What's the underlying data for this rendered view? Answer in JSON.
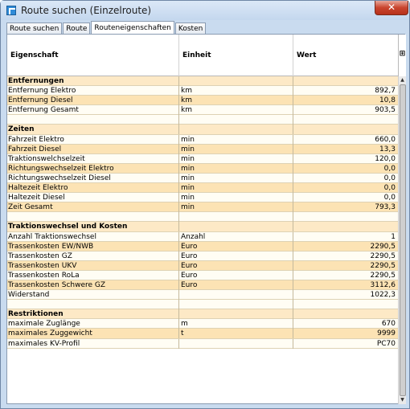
{
  "window": {
    "title": "Route suchen (Einzelroute)",
    "close_symbol": "✕"
  },
  "tabs": [
    {
      "label": "Route suchen",
      "active": false
    },
    {
      "label": "Route",
      "active": false
    },
    {
      "label": "Routeneigenschaften",
      "active": true
    },
    {
      "label": "Kosten",
      "active": false
    }
  ],
  "table": {
    "columns": [
      "Eigenschaft",
      "Einheit",
      "Wert"
    ],
    "column_chooser_symbol": "⊞",
    "rows": [
      {
        "type": "section",
        "name": "Entfernungen",
        "unit": "",
        "value": ""
      },
      {
        "type": "data",
        "name": "Entfernung Elektro",
        "unit": "km",
        "value": "892,7"
      },
      {
        "type": "data",
        "name": "Entfernung Diesel",
        "unit": "km",
        "value": "10,8"
      },
      {
        "type": "data",
        "name": "Entfernung Gesamt",
        "unit": "km",
        "value": "903,5"
      },
      {
        "type": "blank",
        "name": "",
        "unit": "",
        "value": ""
      },
      {
        "type": "section",
        "name": "Zeiten",
        "unit": "",
        "value": ""
      },
      {
        "type": "data",
        "name": "Fahrzeit Elektro",
        "unit": "min",
        "value": "660,0"
      },
      {
        "type": "data",
        "name": "Fahrzeit Diesel",
        "unit": "min",
        "value": "13,3"
      },
      {
        "type": "data",
        "name": "Traktionswelchselzeit",
        "unit": "min",
        "value": "120,0"
      },
      {
        "type": "data",
        "name": "Richtungswechselzeit Elektro",
        "unit": "min",
        "value": "0,0"
      },
      {
        "type": "data",
        "name": "Richtungswechselzeit Diesel",
        "unit": "min",
        "value": "0,0"
      },
      {
        "type": "data",
        "name": "Haltezeit Elektro",
        "unit": "min",
        "value": "0,0"
      },
      {
        "type": "data",
        "name": "Haltezeit Diesel",
        "unit": "min",
        "value": "0,0"
      },
      {
        "type": "data",
        "name": "Zeit Gesamt",
        "unit": "min",
        "value": "793,3"
      },
      {
        "type": "blank",
        "name": "",
        "unit": "",
        "value": ""
      },
      {
        "type": "section",
        "name": "Traktionswechsel und Kosten",
        "unit": "",
        "value": ""
      },
      {
        "type": "data",
        "name": "Anzahl Traktionswechsel",
        "unit": "Anzahl",
        "value": "1"
      },
      {
        "type": "data",
        "name": "Trassenkosten EW/NWB",
        "unit": "Euro",
        "value": "2290,5"
      },
      {
        "type": "data",
        "name": "Trassenkosten GZ",
        "unit": "Euro",
        "value": "2290,5"
      },
      {
        "type": "data",
        "name": "Trassenkosten UKV",
        "unit": "Euro",
        "value": "2290,5"
      },
      {
        "type": "data",
        "name": "Trassenkosten RoLa",
        "unit": "Euro",
        "value": "2290,5"
      },
      {
        "type": "data",
        "name": "Trassenkosten Schwere GZ",
        "unit": "Euro",
        "value": "3112,6"
      },
      {
        "type": "data",
        "name": "Widerstand",
        "unit": "",
        "value": "1022,3"
      },
      {
        "type": "blank",
        "name": "",
        "unit": "",
        "value": ""
      },
      {
        "type": "section",
        "name": "Restriktionen",
        "unit": "",
        "value": ""
      },
      {
        "type": "data",
        "name": "maximale Zuglänge",
        "unit": "m",
        "value": "670"
      },
      {
        "type": "data",
        "name": "maximales Zuggewicht",
        "unit": "t",
        "value": "9999"
      },
      {
        "type": "data",
        "name": "maximales KV-Profil",
        "unit": "",
        "value": "PC70"
      }
    ]
  },
  "scrollbar": {
    "up_symbol": "▲",
    "down_symbol": "▼"
  }
}
